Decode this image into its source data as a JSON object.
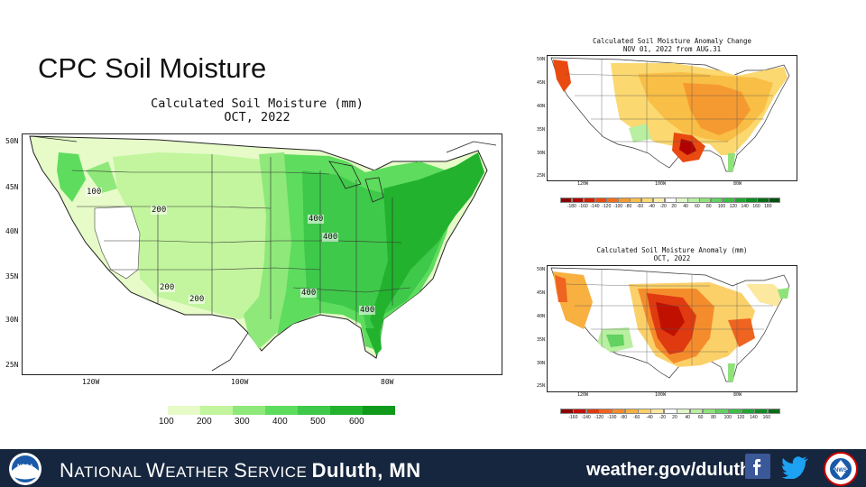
{
  "slide": {
    "title": "CPC Soil Moisture"
  },
  "main_map": {
    "title_line1": "Calculated Soil Moisture (mm)",
    "title_line2": "OCT, 2022",
    "lat_labels": [
      "50N",
      "45N",
      "40N",
      "35N",
      "30N",
      "25N"
    ],
    "lon_labels": [
      "120W",
      "100W",
      "80W"
    ],
    "contour_labels": [
      "100",
      "200",
      "200",
      "200",
      "400",
      "400",
      "400",
      "400"
    ],
    "legend_values": [
      "100",
      "200",
      "300",
      "400",
      "500",
      "600"
    ],
    "legend_colors": [
      "#e6fbc8",
      "#c2f59e",
      "#8fe87a",
      "#5edc5e",
      "#3fc94a",
      "#22b22e",
      "#0f9a1c"
    ]
  },
  "change_map": {
    "title_line1": "Calculated Soil Moisture Anomaly Change",
    "title_line2": "NOV 01, 2022 from AUG.31",
    "lat_labels": [
      "50N",
      "45N",
      "40N",
      "35N",
      "30N",
      "25N"
    ],
    "lon_labels": [
      "120W",
      "100W",
      "80W"
    ],
    "legend_values": [
      "-180",
      "-160",
      "-140",
      "-120",
      "-100",
      "-80",
      "-60",
      "-40",
      "-20",
      "20",
      "40",
      "60",
      "80",
      "100",
      "120",
      "140",
      "160",
      "180"
    ],
    "legend_colors": [
      "#8b0000",
      "#b00000",
      "#d02000",
      "#e84a10",
      "#f07020",
      "#f59a30",
      "#f8be45",
      "#fbd870",
      "#fdeeaa",
      "#ffffff",
      "#e0f7c8",
      "#b8efa0",
      "#8fe27a",
      "#62d260",
      "#3cbf45",
      "#1fa532",
      "#0f8a24",
      "#056c18",
      "#034f10"
    ]
  },
  "anomaly_map": {
    "title_line1": "Calculated Soil Moisture Anomaly (mm)",
    "title_line2": "OCT, 2022",
    "lat_labels": [
      "50N",
      "45N",
      "40N",
      "35N",
      "30N",
      "25N"
    ],
    "lon_labels": [
      "120W",
      "100W",
      "80W"
    ],
    "legend_values": [
      "-160",
      "-140",
      "-120",
      "-100",
      "-80",
      "-60",
      "-40",
      "-20",
      "20",
      "40",
      "60",
      "80",
      "100",
      "120",
      "140",
      "160"
    ],
    "legend_colors": [
      "#8b0000",
      "#c01000",
      "#e03a10",
      "#ee6420",
      "#f58c2c",
      "#f8b040",
      "#fbd068",
      "#fde8a0",
      "#ffffff",
      "#e0f7c8",
      "#b8efa0",
      "#8fe27a",
      "#62d260",
      "#3cbf45",
      "#1fa532",
      "#0f8a24",
      "#056c18"
    ]
  },
  "footer": {
    "agency_first_N": "N",
    "agency_rest_1": "ATIONAL ",
    "agency_first_W": "W",
    "agency_rest_2": "EATHER ",
    "agency_first_S": "S",
    "agency_rest_3": "ERVICE ",
    "office": "Duluth, MN",
    "url": "weather.gov/duluth",
    "noaa_logo_text": "NOAA",
    "nws_logo_text": "NWS"
  }
}
